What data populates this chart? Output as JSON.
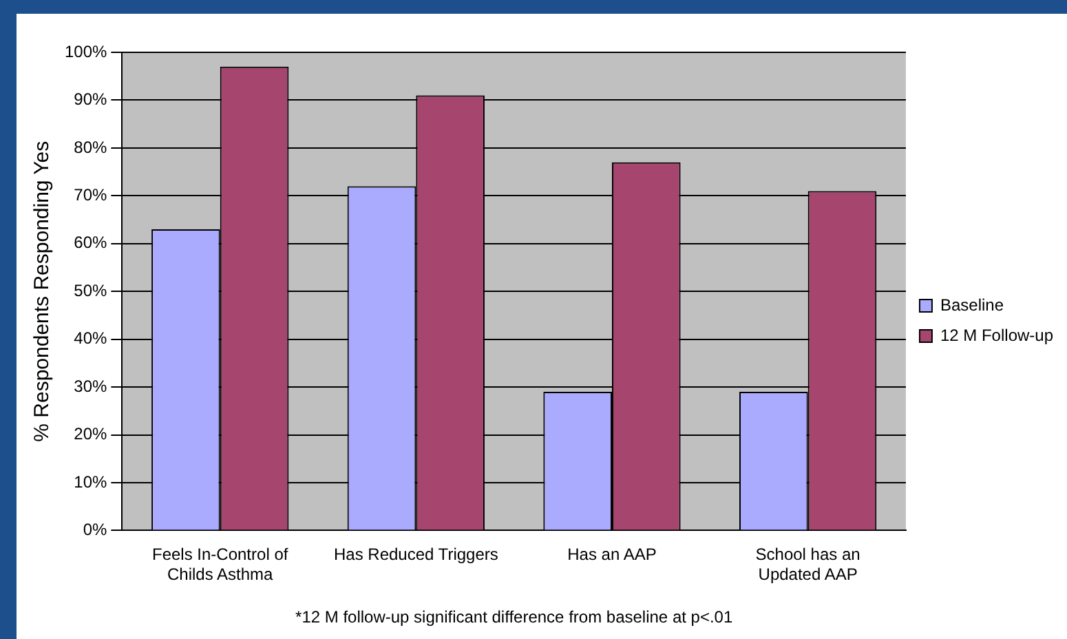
{
  "chart_data": {
    "type": "bar",
    "ylabel": "% Respondents Responding Yes",
    "categories": [
      "Feels In-Control of Childs Asthma",
      "Has Reduced Triggers",
      "Has an AAP",
      "School has an Updated AAP"
    ],
    "series": [
      {
        "name": "Baseline",
        "color": "#aaaaff",
        "values": [
          63,
          72,
          29,
          29
        ]
      },
      {
        "name": "12 M Follow-up",
        "color": "#a6466f",
        "values": [
          97,
          91,
          77,
          71
        ]
      }
    ],
    "ylim": [
      0,
      100
    ],
    "yticks": [
      {
        "value": 0,
        "label": "0%"
      },
      {
        "value": 10,
        "label": "10%"
      },
      {
        "value": 20,
        "label": "20%"
      },
      {
        "value": 30,
        "label": "30%"
      },
      {
        "value": 40,
        "label": "40%"
      },
      {
        "value": 50,
        "label": "50%"
      },
      {
        "value": 60,
        "label": "60%"
      },
      {
        "value": 70,
        "label": "70%"
      },
      {
        "value": 80,
        "label": "80%"
      },
      {
        "value": 90,
        "label": "90%"
      },
      {
        "value": 100,
        "label": "100%"
      }
    ],
    "grid": "y",
    "legend": "right",
    "annotations": [
      "*12 M follow-up significant difference from baseline at p<.01"
    ]
  }
}
